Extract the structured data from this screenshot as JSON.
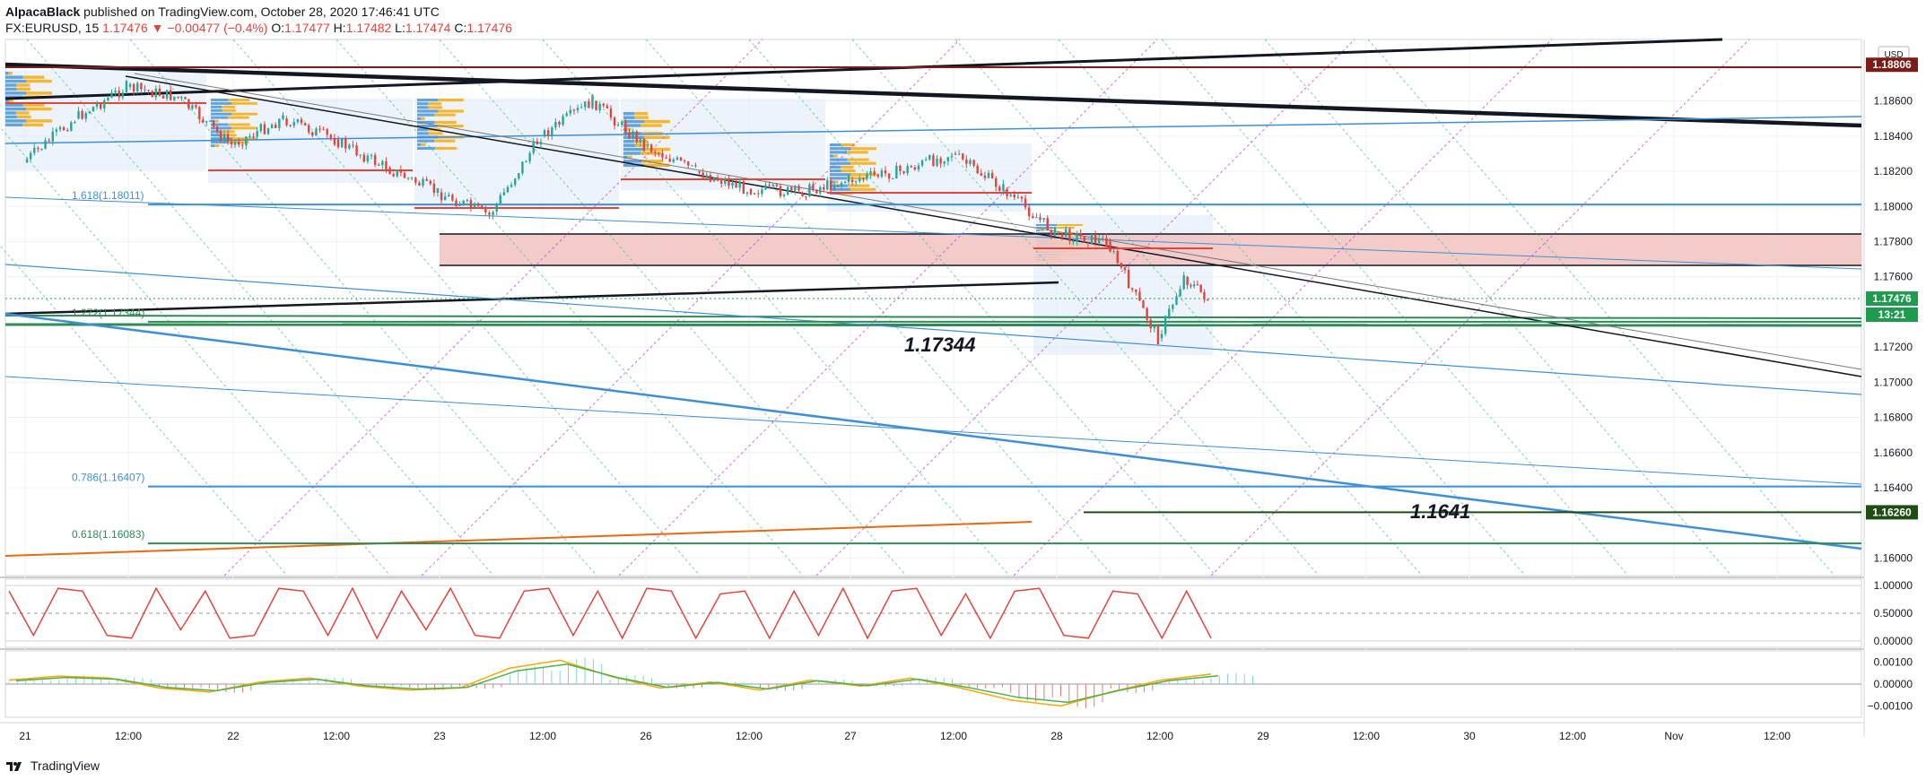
{
  "header": {
    "author": "AlpacaBlack",
    "published": "published on TradingView.com, October 28, 2020 17:46:41 UTC",
    "symbol": "FX:EURUSD, 15",
    "last": "1.17476",
    "change_arrow": "▼",
    "change": "−0.00477 (−0.4%)",
    "o_label": "O:",
    "o_value": "1.17477",
    "h_label": "H:",
    "h_value": "1.17482",
    "l_label": "L:",
    "l_value": "1.17474",
    "c_label": "C:",
    "c_value": "1.17476"
  },
  "footer": {
    "brand": "TradingView",
    "logo_icon": "tradingview-logo-icon"
  },
  "colors": {
    "up": "#26a69a",
    "down": "#e0443a",
    "zone_fill": "#f2c7c3",
    "fib_blue": "#3f8fd6",
    "fib_green": "#2e8b57",
    "pitchfork": "#c84bd6",
    "last_price_bg": "#1e9b4e",
    "top_level_bg": "#7b1c16",
    "bottom_level_bg": "#1f4d14"
  },
  "chart_data": [
    {
      "type": "line",
      "title": "FX:EURUSD, 15",
      "currency": "USD",
      "y_axis_ticks": [
        "1.18600",
        "1.18400",
        "1.18200",
        "1.18000",
        "1.17800",
        "1.17600",
        "1.17200",
        "1.17000",
        "1.16800",
        "1.16600",
        "1.16400",
        "1.16000"
      ],
      "ylim": [
        1.159,
        1.1895
      ],
      "x_axis_ticks": [
        "21",
        "12:00",
        "22",
        "12:00",
        "23",
        "12:00",
        "26",
        "12:00",
        "27",
        "12:00",
        "28",
        "12:00",
        "29",
        "12:00",
        "30",
        "12:00",
        "Nov",
        "12:00"
      ],
      "price_labels": {
        "last": "1.17476",
        "countdown": "13:21",
        "top": "1.18806",
        "bottom": "1.16260"
      },
      "fib_labels": [
        "1.618(1.18011)",
        "1.272(1.17344)",
        "0.786(1.16407)",
        "0.618(1.16083)"
      ],
      "annotations": [
        "1.17344",
        "1.1641"
      ],
      "series": [
        {
          "x": [
            "21 00:00",
            "21 06:00",
            "21 12:00",
            "21 18:00",
            "22 00:00",
            "22 06:00",
            "22 12:00",
            "22 18:00",
            "23 00:00",
            "23 06:00",
            "23 12:00",
            "23 18:00",
            "26 00:00",
            "26 06:00",
            "26 12:00",
            "26 18:00",
            "27 00:00",
            "27 06:00",
            "27 12:00",
            "27 18:00",
            "28 00:00",
            "28 06:00",
            "28 12:00",
            "28 15:00",
            "28 17:45"
          ],
          "values": [
            1.1825,
            1.185,
            1.1868,
            1.1862,
            1.1835,
            1.185,
            1.1838,
            1.1822,
            1.1808,
            1.1795,
            1.184,
            1.186,
            1.1835,
            1.182,
            1.181,
            1.1808,
            1.1815,
            1.182,
            1.183,
            1.181,
            1.1785,
            1.178,
            1.1725,
            1.176,
            1.17476
          ]
        }
      ]
    },
    {
      "type": "line",
      "title": "",
      "y_axis_ticks": [
        "1.00000",
        "0.50000",
        "0.00000"
      ],
      "ylim": [
        -0.05,
        1.05
      ],
      "series": [
        {
          "values": [
            0.9,
            0.1,
            0.95,
            0.9,
            0.1,
            0.05,
            0.95,
            0.2,
            0.9,
            0.05,
            0.1,
            0.95,
            0.9,
            0.1,
            0.95,
            0.05,
            0.9,
            0.2,
            0.95,
            0.1,
            0.05,
            0.9,
            0.95,
            0.1,
            0.9,
            0.05,
            0.95,
            0.9,
            0.05,
            0.85,
            0.9,
            0.05,
            0.9,
            0.1,
            0.95,
            0.05,
            0.9,
            0.95,
            0.1,
            0.85,
            0.05,
            0.9,
            0.95,
            0.1,
            0.05,
            0.9,
            0.85,
            0.05,
            0.9,
            0.05
          ]
        }
      ]
    },
    {
      "type": "bar",
      "title": "",
      "y_axis_ticks": [
        "0.00100",
        "0.00000",
        "−0.00100"
      ],
      "ylim": [
        -0.0015,
        0.0015
      ],
      "series": [
        {
          "name": "",
          "values": [
            0.0002,
            0.0004,
            0.0003,
            -0.0002,
            -0.0004,
            0.0001,
            0.0003,
            -0.0001,
            -0.0003,
            -0.0002,
            0.0008,
            0.0012,
            0.0004,
            -0.0002,
            0.0001,
            -0.0003,
            0.0002,
            -0.0001,
            0.0003,
            -0.0002,
            -0.0008,
            -0.0011,
            -0.0004,
            0.0002,
            0.0005
          ]
        }
      ]
    }
  ]
}
